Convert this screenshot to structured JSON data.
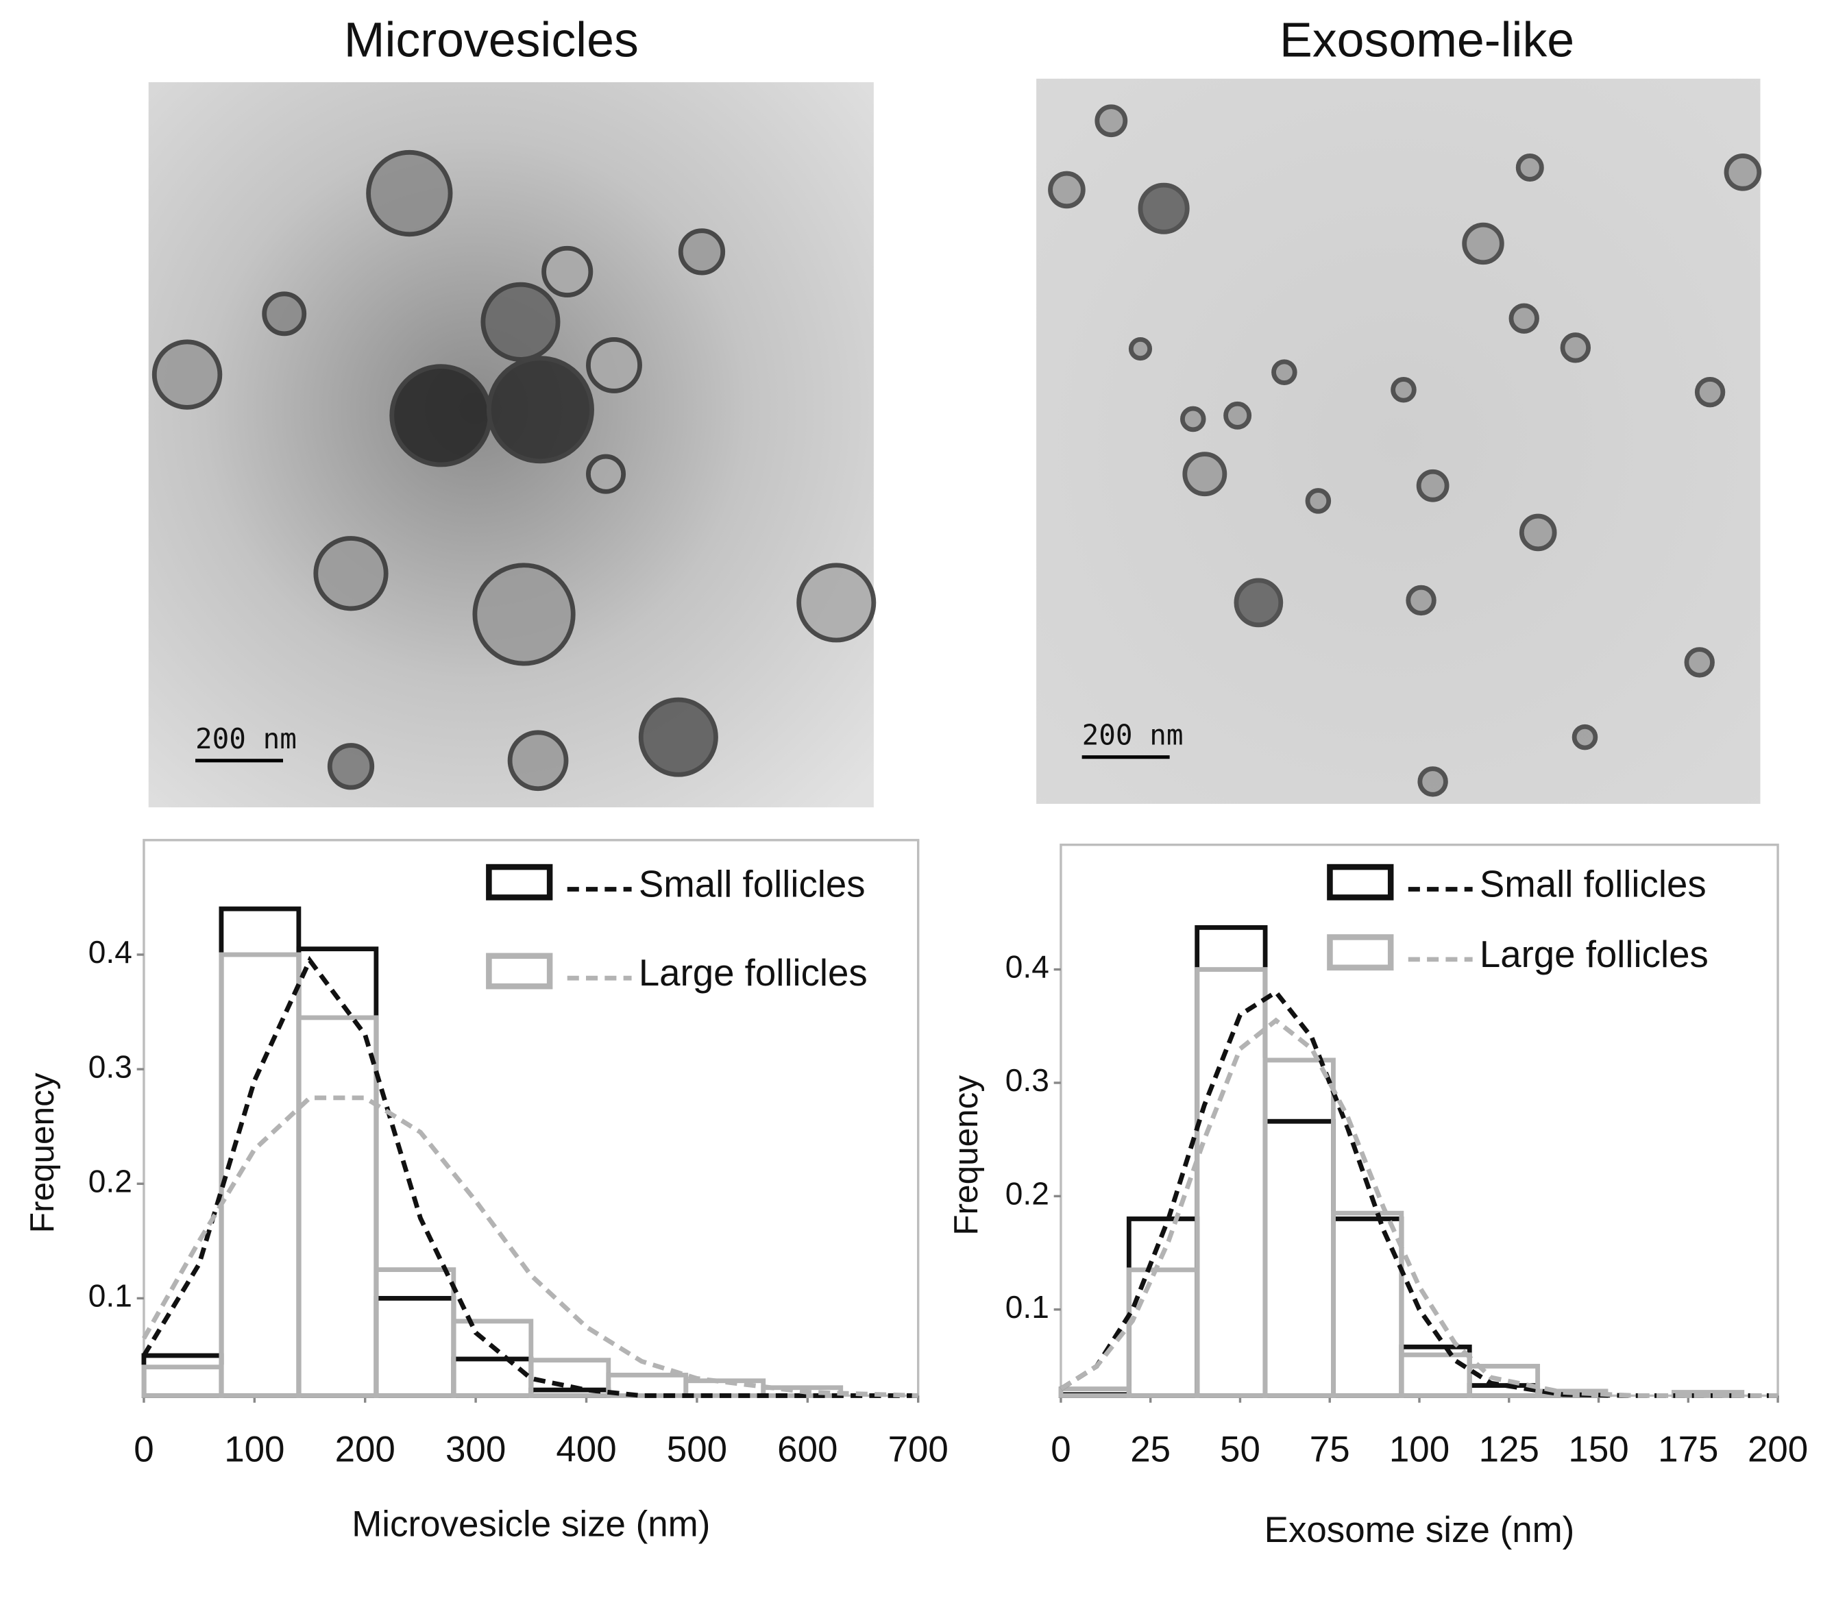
{
  "chart_data": [
    {
      "type": "histogram",
      "title": "Microvesicles",
      "annotation": "200 nm",
      "x_label": "Microvesicle size (nm)",
      "y_label": "Frequency",
      "bins": [
        0,
        70,
        140,
        210,
        280,
        350,
        420,
        490,
        560,
        630,
        700
      ],
      "xlim": [
        0,
        700
      ],
      "xticks": [
        0,
        100,
        200,
        300,
        400,
        500,
        600,
        700
      ],
      "ylim": [
        0.015,
        0.5
      ],
      "yticks": [
        0.1,
        0.2,
        0.3,
        0.4
      ],
      "legend": "upper right",
      "series": [
        {
          "name": "Small follicles",
          "color": "#111111",
          "values": [
            0.05,
            0.44,
            0.405,
            0.1,
            0.047,
            0.02,
            0.015,
            0.015,
            0.015,
            0.015
          ],
          "fit": {
            "x": [
              0,
              50,
              100,
              150,
              200,
              250,
              300,
              350,
              400,
              450,
              500,
              600,
              700
            ],
            "y": [
              0.05,
              0.13,
              0.29,
              0.395,
              0.33,
              0.17,
              0.07,
              0.03,
              0.02,
              0.015,
              0.015,
              0.015,
              0.015
            ]
          }
        },
        {
          "name": "Large follicles",
          "color": "#b3b3b3",
          "values": [
            0.04,
            0.4,
            0.345,
            0.125,
            0.08,
            0.046,
            0.033,
            0.028,
            0.022,
            0.015
          ],
          "fit": {
            "x": [
              0,
              50,
              100,
              150,
              200,
              250,
              300,
              350,
              400,
              450,
              500,
              600,
              700
            ],
            "y": [
              0.065,
              0.15,
              0.23,
              0.275,
              0.275,
              0.245,
              0.185,
              0.12,
              0.075,
              0.045,
              0.03,
              0.018,
              0.015
            ]
          }
        }
      ]
    },
    {
      "type": "histogram",
      "title": "Exosome-like",
      "annotation": "200 nm",
      "x_label": "Exosome size (nm)",
      "y_label": "Frequency",
      "bins": [
        0,
        19,
        38,
        57,
        76,
        95,
        114,
        133,
        152,
        171,
        190
      ],
      "xlim": [
        0,
        200
      ],
      "xticks": [
        0,
        25,
        50,
        75,
        100,
        125,
        150,
        175,
        200
      ],
      "ylim": [
        0.024,
        0.51
      ],
      "yticks": [
        0.1,
        0.2,
        0.3,
        0.4
      ],
      "legend": "upper right",
      "series": [
        {
          "name": "Small follicles",
          "color": "#111111",
          "values": [
            0.025,
            0.18,
            0.437,
            0.266,
            0.18,
            0.067,
            0.033,
            0.025,
            0.024,
            0.024
          ],
          "fit": {
            "x": [
              0,
              10,
              20,
              30,
              40,
              50,
              60,
              70,
              80,
              90,
              100,
              110,
              120,
              140,
              160,
              200
            ],
            "y": [
              0.03,
              0.05,
              0.1,
              0.18,
              0.28,
              0.36,
              0.38,
              0.34,
              0.26,
              0.17,
              0.1,
              0.055,
              0.035,
              0.025,
              0.024,
              0.024
            ]
          }
        },
        {
          "name": "Large follicles",
          "color": "#b3b3b3",
          "values": [
            0.03,
            0.135,
            0.4,
            0.32,
            0.185,
            0.06,
            0.05,
            0.028,
            0.024,
            0.027
          ],
          "fit": {
            "x": [
              0,
              10,
              20,
              30,
              40,
              50,
              60,
              70,
              80,
              90,
              100,
              110,
              120,
              140,
              160,
              200
            ],
            "y": [
              0.03,
              0.05,
              0.09,
              0.16,
              0.25,
              0.33,
              0.355,
              0.33,
              0.27,
              0.19,
              0.12,
              0.07,
              0.04,
              0.027,
              0.024,
              0.024
            ]
          }
        }
      ]
    }
  ]
}
